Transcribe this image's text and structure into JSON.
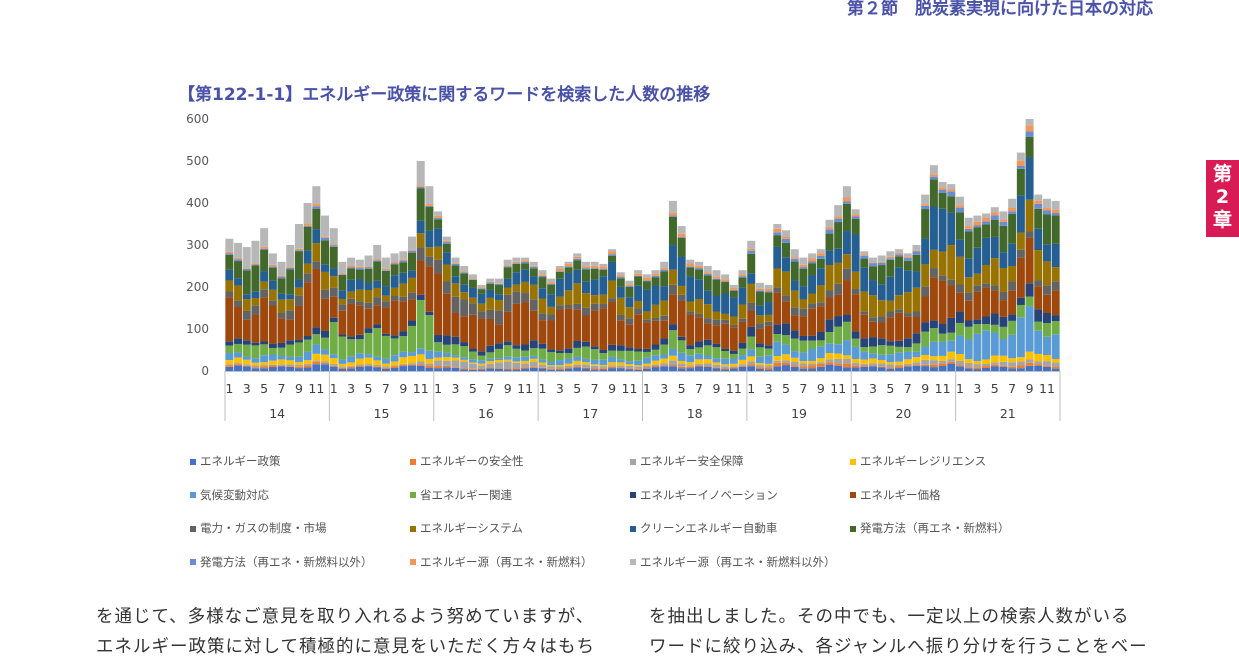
{
  "header": {
    "section": "第２節　脱炭素実現に向けた日本の対応"
  },
  "chapter_tab": {
    "line1": "第",
    "line2": "2",
    "line3": "章"
  },
  "figure_title": "【第122-1-1】エネルギー政策に関するワードを検索した人数の推移",
  "chart_data": {
    "type": "bar",
    "stacked": true,
    "ylim": [
      0,
      600
    ],
    "yticks": [
      "0",
      "100",
      "200",
      "300",
      "400",
      "500",
      "600"
    ],
    "month_labels": [
      "1",
      "3",
      "5",
      "7",
      "9",
      "11"
    ],
    "years": [
      "14",
      "15",
      "16",
      "17",
      "18",
      "19",
      "20",
      "21"
    ],
    "grid": false,
    "legend_position": "bottom",
    "series": [
      {
        "name": "エネルギー政策",
        "color": "#4472c4"
      },
      {
        "name": "エネルギーの安全性",
        "color": "#ed7d31"
      },
      {
        "name": "エネルギー安全保障",
        "color": "#a5a5a5"
      },
      {
        "name": "エネルギーレジリエンス",
        "color": "#ffc000"
      },
      {
        "name": "気候変動対応",
        "color": "#5b9bd5"
      },
      {
        "name": "省エネルギー関連",
        "color": "#70ad47"
      },
      {
        "name": "エネルギーイノベーション",
        "color": "#264478"
      },
      {
        "name": "エネルギー価格",
        "color": "#9e480e"
      },
      {
        "name": "電力・ガスの制度・市場",
        "color": "#636363"
      },
      {
        "name": "エネルギーシステム",
        "color": "#997300"
      },
      {
        "name": "クリーンエネルギー自動車",
        "color": "#255e91"
      },
      {
        "name": "発電方法（再エネ・新燃料）",
        "color": "#43682b"
      },
      {
        "name": "発電方法（再エネ・新燃料以外）",
        "color": "#698ed0"
      },
      {
        "name": "エネルギー源（再エネ・新燃料）",
        "color": "#f1975a"
      },
      {
        "name": "エネルギー源（再エネ・新燃料以外）",
        "color": "#b7b7b7"
      }
    ],
    "totals": [
      315,
      305,
      295,
      310,
      340,
      280,
      260,
      300,
      350,
      400,
      440,
      370,
      340,
      260,
      270,
      265,
      275,
      300,
      270,
      280,
      285,
      320,
      500,
      440,
      380,
      320,
      270,
      250,
      230,
      205,
      220,
      220,
      265,
      270,
      270,
      260,
      240,
      220,
      250,
      260,
      280,
      260,
      260,
      255,
      290,
      235,
      215,
      240,
      230,
      240,
      260,
      405,
      345,
      265,
      260,
      250,
      240,
      230,
      205,
      240,
      310,
      210,
      205,
      350,
      335,
      290,
      270,
      280,
      290,
      360,
      395,
      440,
      385,
      285,
      270,
      275,
      285,
      290,
      280,
      300,
      420,
      490,
      450,
      445,
      415,
      365,
      370,
      375,
      390,
      380,
      410,
      520,
      600,
      420,
      410,
      405
    ],
    "shares": [
      [
        0.03,
        0.01,
        0.01,
        0.03,
        0.04,
        0.08,
        0.03,
        0.25,
        0.06,
        0.08,
        0.06,
        0.16,
        0.01,
        0.01,
        0.14
      ],
      [
        0.03,
        0.01,
        0.01,
        0.04,
        0.04,
        0.18,
        0.03,
        0.22,
        0.05,
        0.08,
        0.08,
        0.12,
        0.01,
        0.01,
        0.09
      ],
      [
        0.02,
        0.01,
        0.05,
        0.02,
        0.03,
        0.08,
        0.05,
        0.3,
        0.12,
        0.09,
        0.09,
        0.08,
        0.01,
        0.01,
        0.04
      ],
      [
        0.02,
        0.01,
        0.02,
        0.02,
        0.04,
        0.08,
        0.04,
        0.32,
        0.05,
        0.12,
        0.14,
        0.08,
        0.01,
        0.02,
        0.03
      ],
      [
        0.03,
        0.01,
        0.02,
        0.03,
        0.05,
        0.08,
        0.04,
        0.22,
        0.04,
        0.1,
        0.18,
        0.12,
        0.01,
        0.02,
        0.05
      ],
      [
        0.03,
        0.02,
        0.02,
        0.03,
        0.08,
        0.08,
        0.06,
        0.18,
        0.05,
        0.12,
        0.12,
        0.12,
        0.02,
        0.02,
        0.05
      ],
      [
        0.03,
        0.01,
        0.02,
        0.03,
        0.06,
        0.06,
        0.06,
        0.18,
        0.04,
        0.14,
        0.18,
        0.12,
        0.02,
        0.01,
        0.04
      ],
      [
        0.02,
        0.01,
        0.02,
        0.03,
        0.15,
        0.06,
        0.05,
        0.15,
        0.04,
        0.12,
        0.14,
        0.13,
        0.02,
        0.02,
        0.04
      ]
    ]
  },
  "body_text": {
    "left_line1": "を通じて、多様なご意見を取り入れるよう努めていますが、",
    "left_line2": "エネルギー政策に対して積極的に意見をいただく方々はもち",
    "right_line1": "を抽出しました。その中でも、一定以上の検索人数がいる",
    "right_line2": "ワードに絞り込み、各ジャンルへ振り分けを行うことをベー"
  }
}
